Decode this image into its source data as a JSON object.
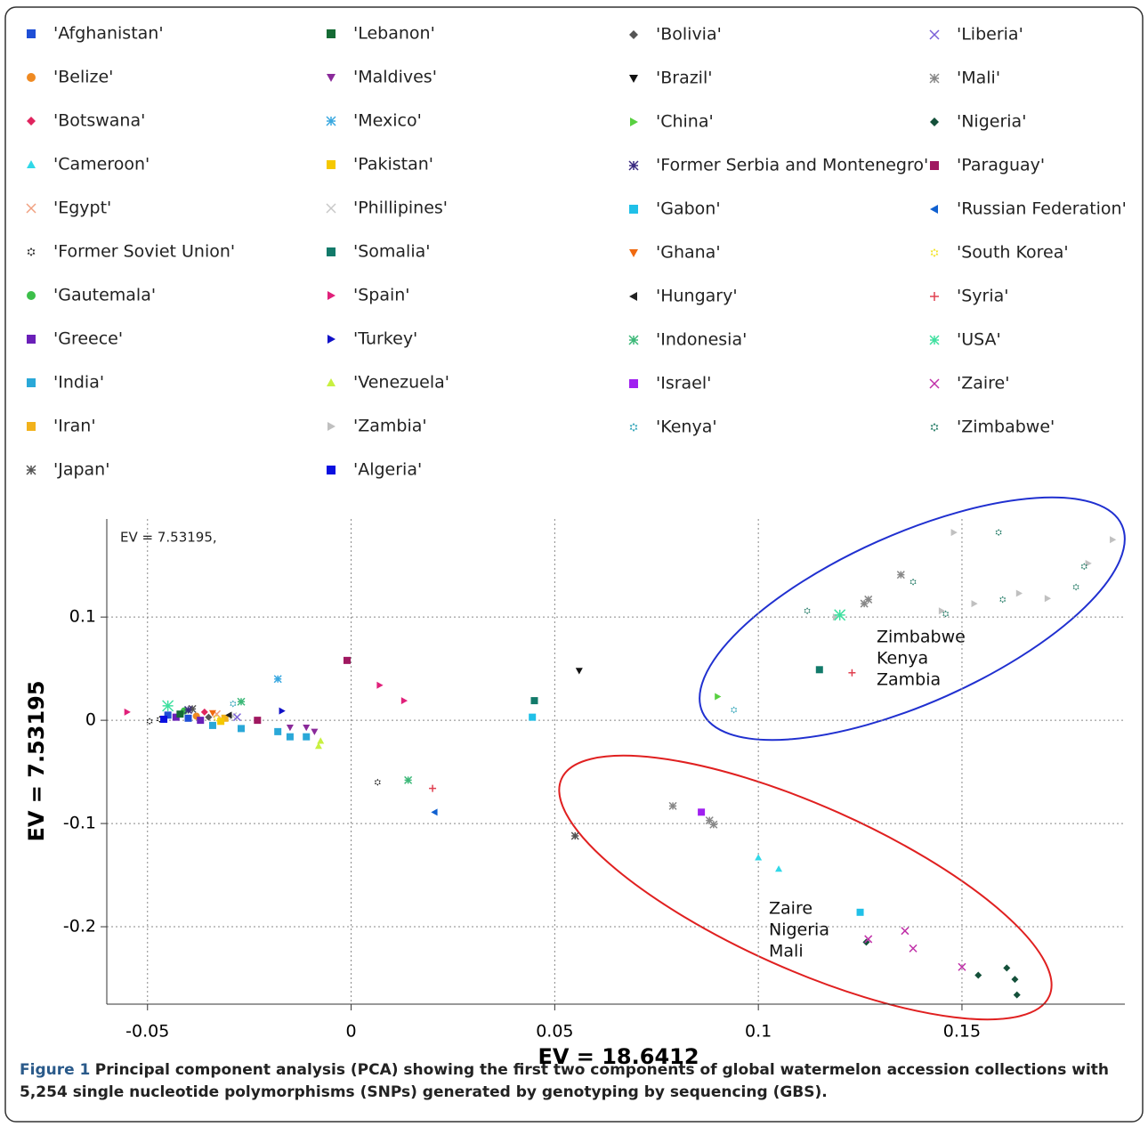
{
  "chart_data": {
    "type": "scatter",
    "annotation_top": "EV = 7.53195,",
    "xlabel": "EV = 18.6412",
    "ylabel": "EV = 7.53195",
    "xlim": [
      -0.06,
      0.19
    ],
    "ylim": [
      -0.275,
      0.195
    ],
    "xticks": [
      -0.05,
      0,
      0.05,
      0.1,
      0.15
    ],
    "yticks": [
      -0.2,
      -0.1,
      0,
      0.1
    ],
    "grid": true,
    "annotations": [
      [
        "Zimbabwe",
        "Kenya",
        "Zambia"
      ],
      [
        "Zaire",
        "Nigeria",
        "Mali"
      ]
    ],
    "caption_label": "Figure 1",
    "caption_text": "Principal component analysis (PCA) showing the first two components of global watermelon accession collections with 5,254 single nucleotide polymorphisms (SNPs) generated by genotyping by sequencing (GBS).",
    "series": [
      {
        "name": "'Afghanistan'",
        "color": "#1f4fd6",
        "marker": "s",
        "x": [
          -0.045,
          -0.04
        ],
        "y": [
          0.005,
          0.002
        ]
      },
      {
        "name": "'Belize'",
        "color": "#ef8a22",
        "marker": "o",
        "x": [
          -0.038
        ],
        "y": [
          0.004
        ]
      },
      {
        "name": "'Botswana'",
        "color": "#e0245e",
        "marker": "D",
        "x": [
          -0.036
        ],
        "y": [
          0.008
        ]
      },
      {
        "name": "'Cameroon'",
        "color": "#30d8e8",
        "marker": "^",
        "x": [
          0.1,
          0.105
        ],
        "y": [
          -0.133,
          -0.144
        ]
      },
      {
        "name": "'Egypt'",
        "color": "#f0a080",
        "marker": "x",
        "x": [
          -0.033
        ],
        "y": [
          0.006
        ]
      },
      {
        "name": "'Former Soviet Union'",
        "color": "#111111",
        "marker": "h",
        "x": [
          0.0065,
          -0.0495,
          -0.047
        ],
        "y": [
          -0.06,
          -0.001,
          0.001
        ]
      },
      {
        "name": "'Gautemala'",
        "color": "#3cbf4a",
        "marker": "o",
        "x": [
          -0.041
        ],
        "y": [
          0.009
        ]
      },
      {
        "name": "'Greece'",
        "color": "#6a1fb8",
        "marker": "s",
        "x": [
          -0.043,
          -0.037
        ],
        "y": [
          0.003,
          0.0
        ]
      },
      {
        "name": "'India'",
        "color": "#2aa8d8",
        "marker": "s",
        "x": [
          -0.015,
          -0.018,
          -0.011,
          -0.027,
          -0.034
        ],
        "y": [
          -0.016,
          -0.011,
          -0.016,
          -0.008,
          -0.005
        ]
      },
      {
        "name": "'Iran'",
        "color": "#f2b21b",
        "marker": "s",
        "x": [
          -0.031
        ],
        "y": [
          0.002
        ]
      },
      {
        "name": "'Japan'",
        "color": "#555555",
        "marker": "*",
        "x": [
          0.055,
          -0.039
        ],
        "y": [
          -0.112,
          0.011
        ]
      },
      {
        "name": "'Lebanon'",
        "color": "#156b34",
        "marker": "s",
        "x": [
          -0.042
        ],
        "y": [
          0.006
        ]
      },
      {
        "name": "'Maldives'",
        "color": "#8a2a9a",
        "marker": "v",
        "x": [
          -0.009,
          -0.015,
          -0.011
        ],
        "y": [
          -0.011,
          -0.007,
          -0.007
        ]
      },
      {
        "name": "'Mexico'",
        "color": "#3aa8e0",
        "marker": "*",
        "x": [
          -0.018
        ],
        "y": [
          0.04
        ]
      },
      {
        "name": "'Pakistan'",
        "color": "#f5c800",
        "marker": "s",
        "x": [
          -0.032
        ],
        "y": [
          -0.001
        ]
      },
      {
        "name": "'Phillipines'",
        "color": "#c8c8c8",
        "marker": "x",
        "x": [
          -0.029
        ],
        "y": [
          0.004
        ]
      },
      {
        "name": "'Somalia'",
        "color": "#127a6a",
        "marker": "s",
        "x": [
          0.115,
          0.045
        ],
        "y": [
          0.049,
          0.019
        ]
      },
      {
        "name": "'Spain'",
        "color": "#e0207a",
        "marker": ">",
        "x": [
          0.007,
          0.013,
          -0.055
        ],
        "y": [
          0.034,
          0.019,
          0.008
        ]
      },
      {
        "name": "'Turkey'",
        "color": "#1010c8",
        "marker": ">",
        "x": [
          -0.017
        ],
        "y": [
          0.009
        ]
      },
      {
        "name": "'Venezuela'",
        "color": "#c8f040",
        "marker": "^",
        "x": [
          -0.008,
          -0.0075
        ],
        "y": [
          -0.025,
          -0.02
        ]
      },
      {
        "name": "'Zambia'",
        "color": "#c0c0c0",
        "marker": ">",
        "x": [
          0.148,
          0.187,
          0.164,
          0.171,
          0.153,
          0.145,
          0.119,
          0.181
        ],
        "y": [
          0.182,
          0.175,
          0.123,
          0.118,
          0.113,
          0.106,
          0.1,
          0.152
        ]
      },
      {
        "name": "'Algeria'",
        "color": "#0a10e0",
        "marker": "s",
        "x": [
          -0.046
        ],
        "y": [
          0.001
        ]
      },
      {
        "name": "'Bolivia'",
        "color": "#555555",
        "marker": "D",
        "x": [
          -0.035
        ],
        "y": [
          0.003
        ]
      },
      {
        "name": "'Brazil'",
        "color": "#111111",
        "marker": "v",
        "x": [
          0.056
        ],
        "y": [
          0.048
        ]
      },
      {
        "name": "'China'",
        "color": "#58d040",
        "marker": ">",
        "x": [
          0.09
        ],
        "y": [
          0.023
        ]
      },
      {
        "name": "'Former Serbia and Montenegro'",
        "color": "#3a2a80",
        "marker": "*",
        "x": [
          -0.04
        ],
        "y": [
          0.01
        ]
      },
      {
        "name": "'Gabon'",
        "color": "#20c0e8",
        "marker": "s",
        "x": [
          0.0445,
          0.125
        ],
        "y": [
          0.003,
          -0.186
        ]
      },
      {
        "name": "'Ghana'",
        "color": "#f06a10",
        "marker": "v",
        "x": [
          -0.034
        ],
        "y": [
          0.007
        ]
      },
      {
        "name": "'Hungary'",
        "color": "#222222",
        "marker": "<",
        "x": [
          -0.03
        ],
        "y": [
          0.005
        ]
      },
      {
        "name": "'Indonesia'",
        "color": "#3cb878",
        "marker": "*",
        "x": [
          0.014,
          -0.027
        ],
        "y": [
          -0.058,
          0.018
        ]
      },
      {
        "name": "'Israel'",
        "color": "#a020f0",
        "marker": "s",
        "x": [
          0.086
        ],
        "y": [
          -0.089
        ]
      },
      {
        "name": "'Kenya'",
        "color": "#1a9ab0",
        "marker": "h",
        "x": [
          0.094,
          -0.029
        ],
        "y": [
          0.01,
          0.016
        ]
      },
      {
        "name": "'Liberia'",
        "color": "#7a60d8",
        "marker": "x",
        "x": [
          -0.028
        ],
        "y": [
          0.003
        ]
      },
      {
        "name": "'Mali'",
        "color": "#888888",
        "marker": "*",
        "x": [
          0.135,
          0.127,
          0.126,
          0.079,
          0.088,
          0.089
        ],
        "y": [
          0.141,
          0.117,
          0.113,
          -0.083,
          -0.097,
          -0.101
        ]
      },
      {
        "name": "'Nigeria'",
        "color": "#14503a",
        "marker": "D",
        "x": [
          0.1265,
          0.154,
          0.161,
          0.163,
          0.1635
        ],
        "y": [
          -0.215,
          -0.247,
          -0.24,
          -0.251,
          -0.266
        ]
      },
      {
        "name": "'Paraguay'",
        "color": "#a01860",
        "marker": "s",
        "x": [
          -0.001,
          -0.023
        ],
        "y": [
          0.058,
          0.0
        ]
      },
      {
        "name": "'Russian Federation'",
        "color": "#1060d0",
        "marker": "<",
        "x": [
          0.0205
        ],
        "y": [
          -0.089
        ]
      },
      {
        "name": "'South Korea'",
        "color": "#f0e010",
        "marker": "h",
        "x": [
          -0.033
        ],
        "y": [
          0.002
        ]
      },
      {
        "name": "'Syria'",
        "color": "#e04050",
        "marker": "+",
        "x": [
          0.123,
          0.02
        ],
        "y": [
          0.046,
          -0.066
        ]
      },
      {
        "name": "'USA'",
        "color": "#40e0a0",
        "marker": "*",
        "x": [
          0.12,
          -0.045
        ],
        "y": [
          0.102,
          0.014
        ]
      },
      {
        "name": "'Zaire'",
        "color": "#c030a8",
        "marker": "x",
        "x": [
          0.136,
          0.138,
          0.15,
          0.127
        ],
        "y": [
          -0.204,
          -0.221,
          -0.239,
          -0.212
        ]
      },
      {
        "name": "'Zimbabwe'",
        "color": "#12705a",
        "marker": "h",
        "x": [
          0.112,
          0.138,
          0.146,
          0.159,
          0.16,
          0.178,
          0.18
        ],
        "y": [
          0.106,
          0.134,
          0.103,
          0.182,
          0.117,
          0.129,
          0.149
        ]
      }
    ]
  }
}
